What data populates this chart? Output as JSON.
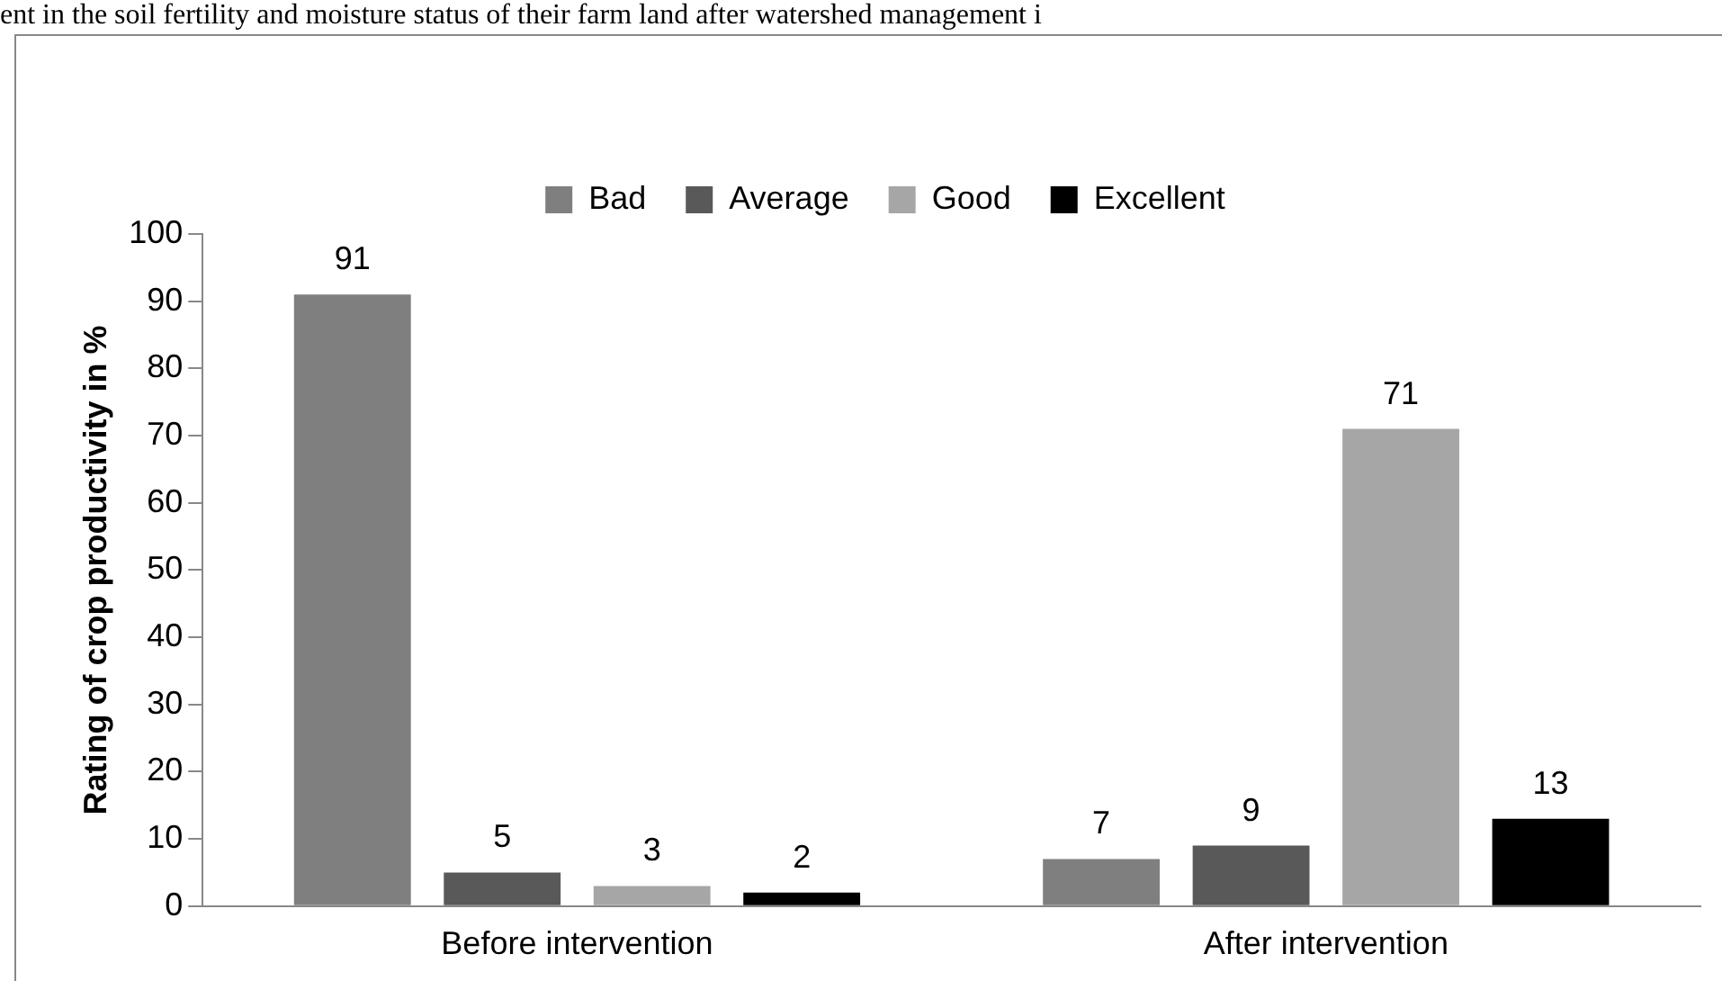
{
  "chart_data": {
    "type": "bar",
    "ylabel": "Rating of crop productivity in %",
    "categories": [
      "Before intervention",
      "After intervention"
    ],
    "series": [
      {
        "name": "Bad",
        "color": "#7f7f7f",
        "values": [
          91,
          7
        ]
      },
      {
        "name": "Average",
        "color": "#595959",
        "values": [
          5,
          9
        ]
      },
      {
        "name": "Good",
        "color": "#a6a6a6",
        "values": [
          3,
          71
        ]
      },
      {
        "name": "Excellent",
        "color": "#000000",
        "values": [
          2,
          13
        ]
      }
    ],
    "ylim": [
      0,
      100
    ],
    "yticks": [
      0,
      10,
      20,
      30,
      40,
      50,
      60,
      70,
      80,
      90,
      100
    ],
    "grid": false,
    "legend": "top",
    "data_labels": true,
    "annotations": [
      "ent in the soil fertility and moisture status of their farm land after watershed management i"
    ]
  }
}
